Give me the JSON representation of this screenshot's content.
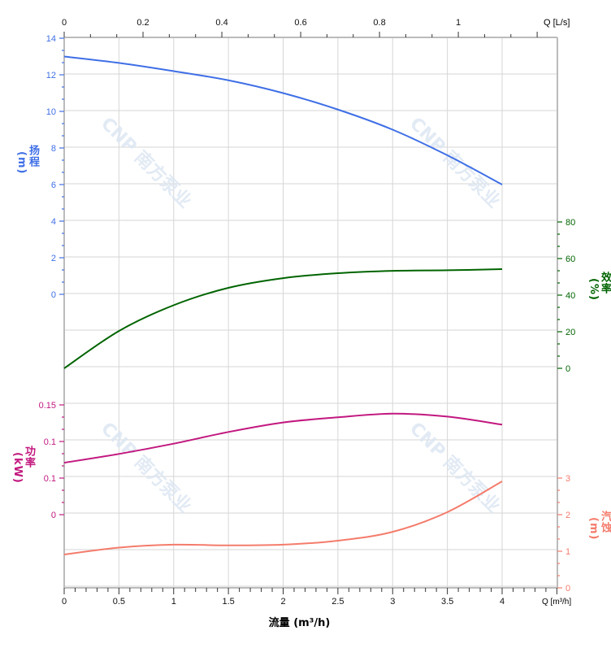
{
  "chart_data": {
    "type": "line",
    "xlabel": "流量 (m³/h)",
    "x_axis_unit_label": "Q [m³/h]",
    "top_axis_unit_label": "Q [L/s]",
    "xlim": [
      0,
      4.5
    ],
    "x_ticks": [
      "0",
      "0.5",
      "1",
      "1.5",
      "2",
      "2.5",
      "3",
      "3.5",
      "4"
    ],
    "top_ticks": [
      "0",
      "0.2",
      "0.4",
      "0.6",
      "0.8",
      "1"
    ],
    "grid": true,
    "watermark": "CNP 南方泵业",
    "axes": {
      "head": {
        "label": "扬程",
        "unit": "(m)",
        "ticks": [
          "0",
          "2",
          "4",
          "6",
          "8",
          "10",
          "12",
          "14"
        ],
        "color": "#3f6fe6"
      },
      "power": {
        "label": "功率",
        "unit": "(kW)",
        "ticks": [
          "0",
          "0.1",
          "0.1",
          "0.15"
        ],
        "color": "#c2187f"
      },
      "efficiency": {
        "label": "效率",
        "unit": "(%)",
        "ticks": [
          "0",
          "20",
          "40",
          "60",
          "80"
        ],
        "color": "#006400"
      },
      "npsh": {
        "label": "汽蚀",
        "unit": "(m)",
        "ticks": [
          "0",
          "1",
          "2",
          "3"
        ],
        "color": "#f47c6c"
      }
    },
    "x": [
      0,
      0.5,
      1,
      1.5,
      2,
      2.5,
      3,
      3.5,
      4
    ],
    "series": [
      {
        "axis": "head",
        "values": [
          13,
          12.65,
          12.2,
          11.7,
          11.0,
          10.1,
          9.0,
          7.6,
          6.0
        ]
      },
      {
        "axis": "efficiency",
        "values": [
          0,
          20.4,
          34.5,
          44,
          49.3,
          52,
          53.3,
          53.6,
          54.2
        ]
      },
      {
        "axis": "power",
        "values": [
          0.071,
          0.083,
          0.097,
          0.113,
          0.126,
          0.133,
          0.138,
          0.134,
          0.123
        ]
      },
      {
        "axis": "npsh",
        "values": [
          0.91,
          1.1,
          1.18,
          1.16,
          1.18,
          1.29,
          1.53,
          2.07,
          2.91
        ]
      }
    ]
  }
}
